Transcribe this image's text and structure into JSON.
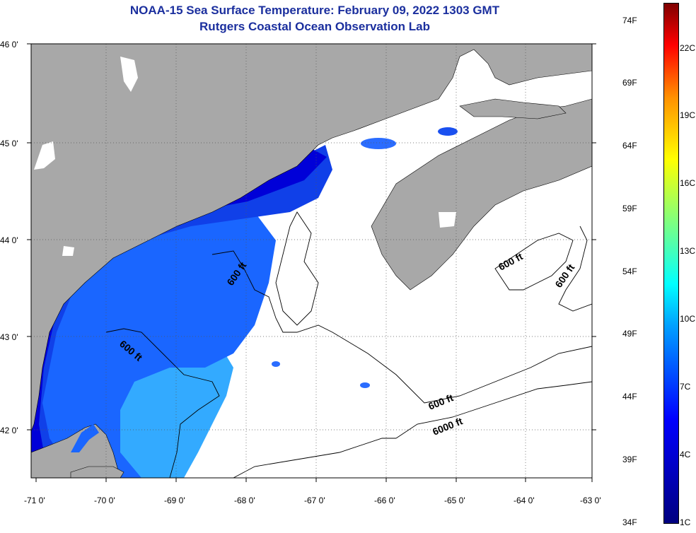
{
  "title": {
    "line1": "NOAA-15 Sea Surface Temperature:  February 09, 2022 1303 GMT",
    "line2": "Rutgers Coastal Ocean Observation Lab"
  },
  "axes": {
    "lat_labels": [
      "46 0'",
      "45 0'",
      "44 0'",
      "43 0'",
      "42 0'"
    ],
    "lon_labels": [
      "-71 0'",
      "-70 0'",
      "-69 0'",
      "-68 0'",
      "-67 0'",
      "-66 0'",
      "-65 0'",
      "-64 0'",
      "-63 0'"
    ]
  },
  "contour_labels": {
    "c1": "600 ft",
    "c2": "600 ft",
    "c3": "600 ft",
    "c4": "600 ft",
    "c5": "600 ft",
    "c6": "6000 ft"
  },
  "colorbar": {
    "fahrenheit": [
      "74F",
      "69F",
      "64F",
      "59F",
      "54F",
      "49F",
      "44F",
      "39F",
      "34F"
    ],
    "celsius": [
      "22C",
      "19C",
      "16C",
      "13C",
      "10C",
      "7C",
      "4C",
      "1C"
    ]
  },
  "colors": {
    "land": "#a8a8a8",
    "cold": "#0000cc",
    "mid": "#1a66ff",
    "warm": "#33aaff",
    "title": "#1b2f9e"
  }
}
